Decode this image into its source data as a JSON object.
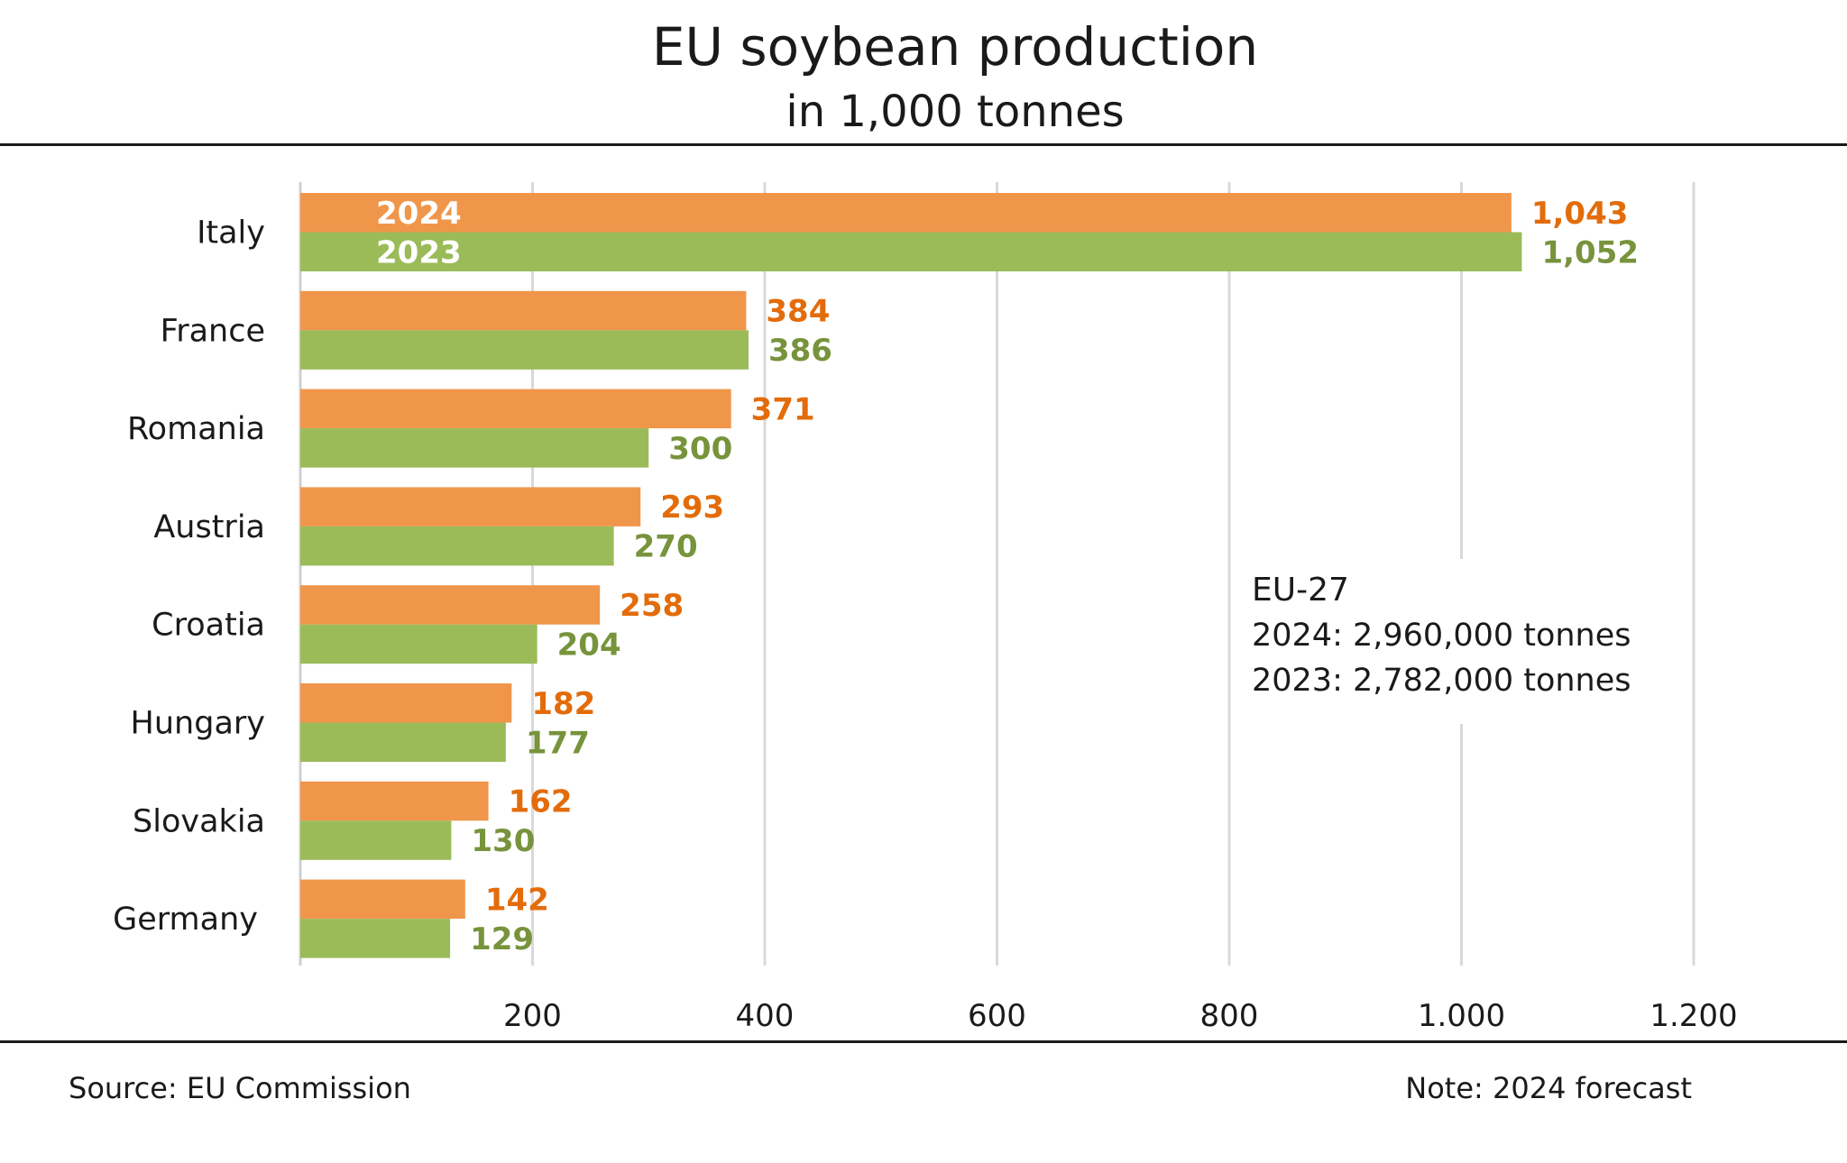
{
  "chart_data": {
    "type": "bar",
    "orientation": "horizontal",
    "title": "EU soybean production",
    "subtitle": "in 1,000 tonnes",
    "categories": [
      "Italy",
      "France",
      "Romania",
      "Austria",
      "Croatia",
      "Hungary",
      "Slovakia",
      "Germany"
    ],
    "series": [
      {
        "name": "2024",
        "color": "#f0964b",
        "label_color": "#e36c0a",
        "values": [
          1043,
          384,
          371,
          293,
          258,
          182,
          162,
          142
        ],
        "labels": [
          "1,043",
          "384",
          "371",
          "293",
          "258",
          "182",
          "162",
          "142"
        ]
      },
      {
        "name": "2023",
        "color": "#9bbb59",
        "label_color": "#77933c",
        "values": [
          1052,
          386,
          300,
          270,
          204,
          177,
          130,
          129
        ],
        "labels": [
          "1,052",
          "386",
          "300",
          "270",
          "204",
          "177",
          "130",
          "129"
        ]
      }
    ],
    "xlim": [
      0,
      1200
    ],
    "xticks": [
      200,
      400,
      600,
      800,
      1000,
      1200
    ],
    "xtick_labels": [
      "200",
      "400",
      "600",
      "800",
      "1.000",
      "1.200"
    ],
    "grid": true
  },
  "annotation": {
    "heading": "EU-27",
    "line1": "2024: 2,960,000 tonnes",
    "line2": "2023: 2,782,000 tonnes"
  },
  "footer": {
    "source": "Source:  EU Commission",
    "note": "Note: 2024 forecast"
  }
}
